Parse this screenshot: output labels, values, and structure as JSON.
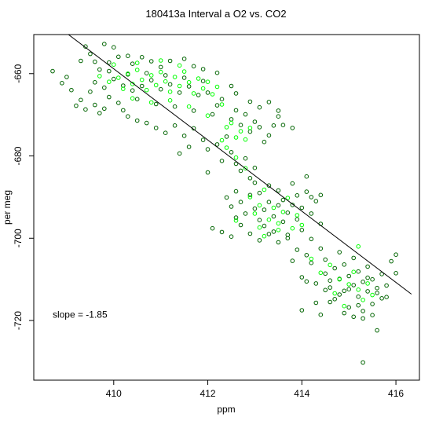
{
  "chart_data": {
    "type": "scatter",
    "title": "180413a   Interval a O2 vs. CO2",
    "xlabel": "ppm",
    "ylabel": "per meg",
    "xlim": [
      408.3,
      416.5
    ],
    "ylim": [
      -734.5,
      -650.5
    ],
    "xticks": [
      "410",
      "412",
      "414",
      "416"
    ],
    "xtick_values": [
      410,
      412,
      414,
      416
    ],
    "yticks": [
      "-660",
      "-680",
      "-700",
      "-720"
    ],
    "ytick_values": [
      -660,
      -680,
      -700,
      -720
    ],
    "grid": false,
    "annotation": "slope =  -1.85",
    "annotation_pos": {
      "x": 408.7,
      "y": -718.6
    },
    "regression_line": {
      "slope": -1.85,
      "x1": 408.88,
      "y1": -649.14,
      "x2": 416.33,
      "y2": -713.59
    },
    "series": [
      {
        "color": "#006400",
        "points": [
          [
            408.7,
            -659.4
          ],
          [
            408.9,
            -662.3
          ],
          [
            409.0,
            -660.8
          ],
          [
            409.1,
            -664.0
          ],
          [
            409.3,
            -656.9
          ],
          [
            409.4,
            -653.4
          ],
          [
            409.5,
            -655.2
          ],
          [
            409.6,
            -657.1
          ],
          [
            409.7,
            -659.0
          ],
          [
            409.8,
            -652.8
          ],
          [
            409.9,
            -657.3
          ],
          [
            410.0,
            -653.6
          ],
          [
            410.1,
            -655.9
          ],
          [
            410.3,
            -655.7
          ],
          [
            410.4,
            -657.6
          ],
          [
            410.6,
            -656.0
          ],
          [
            410.8,
            -657.0
          ],
          [
            411.0,
            -658.4
          ],
          [
            411.2,
            -656.9
          ],
          [
            411.5,
            -656.4
          ],
          [
            411.7,
            -658.2
          ],
          [
            411.9,
            -658.9
          ],
          [
            412.2,
            -659.8
          ],
          [
            409.2,
            -667.8
          ],
          [
            409.3,
            -666.4
          ],
          [
            409.4,
            -668.7
          ],
          [
            409.5,
            -664.4
          ],
          [
            409.6,
            -667.6
          ],
          [
            409.7,
            -669.6
          ],
          [
            409.8,
            -668.5
          ],
          [
            409.9,
            -665.7
          ],
          [
            410.1,
            -667.1
          ],
          [
            410.2,
            -668.9
          ],
          [
            410.3,
            -670.4
          ],
          [
            410.5,
            -671.4
          ],
          [
            410.7,
            -672.0
          ],
          [
            410.9,
            -673.2
          ],
          [
            411.1,
            -674.4
          ],
          [
            411.3,
            -672.6
          ],
          [
            411.5,
            -675.1
          ],
          [
            411.7,
            -673.3
          ],
          [
            411.9,
            -676.1
          ],
          [
            412.0,
            -678.4
          ],
          [
            412.2,
            -677.2
          ],
          [
            412.4,
            -675.3
          ],
          [
            412.5,
            -671.1
          ],
          [
            412.6,
            -668.9
          ],
          [
            412.7,
            -672.5
          ],
          [
            412.8,
            -669.9
          ],
          [
            412.9,
            -674.1
          ],
          [
            413.0,
            -671.7
          ],
          [
            413.1,
            -673.0
          ],
          [
            413.2,
            -676.6
          ],
          [
            413.3,
            -675.0
          ],
          [
            413.4,
            -672.6
          ],
          [
            413.5,
            -670.4
          ],
          [
            412.3,
            -666.2
          ],
          [
            412.5,
            -663.0
          ],
          [
            412.6,
            -664.8
          ],
          [
            412.9,
            -666.8
          ],
          [
            413.1,
            -668.2
          ],
          [
            413.3,
            -666.9
          ],
          [
            413.5,
            -669.0
          ],
          [
            413.6,
            -672.5
          ],
          [
            413.8,
            -673.2
          ],
          [
            409.6,
            -662.1
          ],
          [
            409.8,
            -663.4
          ],
          [
            410.0,
            -661.3
          ],
          [
            410.2,
            -662.9
          ],
          [
            410.4,
            -664.1
          ],
          [
            410.6,
            -663.0
          ],
          [
            410.8,
            -661.6
          ],
          [
            411.0,
            -663.8
          ],
          [
            411.2,
            -662.6
          ],
          [
            411.4,
            -664.6
          ],
          [
            411.6,
            -663.1
          ],
          [
            411.8,
            -665.2
          ],
          [
            412.0,
            -664.6
          ],
          [
            412.2,
            -667.7
          ],
          [
            409.9,
            -659.4
          ],
          [
            410.3,
            -660.2
          ],
          [
            410.7,
            -659.9
          ],
          [
            411.1,
            -660.4
          ],
          [
            411.5,
            -661.0
          ],
          [
            411.9,
            -661.8
          ],
          [
            410.5,
            -666.2
          ],
          [
            410.9,
            -667.4
          ],
          [
            411.3,
            -668.0
          ],
          [
            411.7,
            -669.0
          ],
          [
            412.1,
            -669.9
          ],
          [
            411.4,
            -679.4
          ],
          [
            411.6,
            -677.8
          ],
          [
            412.0,
            -684.0
          ],
          [
            412.3,
            -681.2
          ],
          [
            412.5,
            -679.1
          ],
          [
            412.6,
            -681.9
          ],
          [
            412.7,
            -683.6
          ],
          [
            412.8,
            -680.6
          ],
          [
            412.9,
            -685.4
          ],
          [
            413.0,
            -682.9
          ],
          [
            412.4,
            -690.1
          ],
          [
            412.5,
            -692.3
          ],
          [
            412.6,
            -688.6
          ],
          [
            412.6,
            -695.0
          ],
          [
            412.7,
            -691.2
          ],
          [
            412.8,
            -694.0
          ],
          [
            412.9,
            -689.5
          ],
          [
            413.0,
            -692.8
          ],
          [
            413.0,
            -686.5
          ],
          [
            413.1,
            -695.6
          ],
          [
            413.1,
            -689.0
          ],
          [
            413.2,
            -693.1
          ],
          [
            413.2,
            -697.0
          ],
          [
            413.3,
            -691.2
          ],
          [
            413.3,
            -687.2
          ],
          [
            413.4,
            -694.7
          ],
          [
            413.4,
            -698.4
          ],
          [
            413.5,
            -692.0
          ],
          [
            413.5,
            -688.4
          ],
          [
            413.6,
            -696.0
          ],
          [
            413.6,
            -690.7
          ],
          [
            413.7,
            -693.8
          ],
          [
            413.7,
            -699.2
          ],
          [
            413.8,
            -686.7
          ],
          [
            413.8,
            -691.9
          ],
          [
            413.9,
            -695.4
          ],
          [
            413.9,
            -689.6
          ],
          [
            414.0,
            -692.6
          ],
          [
            414.0,
            -698.0
          ],
          [
            414.1,
            -685.0
          ],
          [
            414.1,
            -688.7
          ],
          [
            414.2,
            -694.0
          ],
          [
            414.2,
            -700.2
          ],
          [
            414.3,
            -691.0
          ],
          [
            414.4,
            -696.5
          ],
          [
            414.4,
            -702.5
          ],
          [
            414.2,
            -690.0
          ],
          [
            414.4,
            -689.5
          ],
          [
            412.1,
            -697.6
          ],
          [
            412.3,
            -698.5
          ],
          [
            412.5,
            -699.6
          ],
          [
            412.7,
            -696.8
          ],
          [
            412.9,
            -698.9
          ],
          [
            413.1,
            -700.5
          ],
          [
            413.3,
            -699.0
          ],
          [
            413.5,
            -701.0
          ],
          [
            413.7,
            -700.0
          ],
          [
            413.9,
            -702.8
          ],
          [
            414.1,
            -704.1
          ],
          [
            413.8,
            -705.5
          ],
          [
            414.0,
            -709.5
          ],
          [
            414.2,
            -706.0
          ],
          [
            414.3,
            -711.0
          ],
          [
            414.5,
            -705.2
          ],
          [
            414.5,
            -708.6
          ],
          [
            414.6,
            -712.0
          ],
          [
            414.7,
            -707.3
          ],
          [
            414.7,
            -714.8
          ],
          [
            414.8,
            -709.9
          ],
          [
            414.8,
            -703.4
          ],
          [
            414.9,
            -712.8
          ],
          [
            414.9,
            -706.4
          ],
          [
            415.0,
            -709.2
          ],
          [
            415.0,
            -716.8
          ],
          [
            415.1,
            -711.4
          ],
          [
            415.1,
            -704.8
          ],
          [
            415.2,
            -708.1
          ],
          [
            415.2,
            -714.2
          ],
          [
            415.3,
            -710.6
          ],
          [
            415.3,
            -719.5
          ],
          [
            415.4,
            -712.9
          ],
          [
            415.4,
            -706.9
          ],
          [
            415.5,
            -710.0
          ],
          [
            415.5,
            -716.0
          ],
          [
            415.6,
            -713.3
          ],
          [
            415.6,
            -722.4
          ],
          [
            415.7,
            -708.7
          ],
          [
            415.7,
            -714.6
          ],
          [
            415.8,
            -711.5
          ],
          [
            415.9,
            -705.6
          ],
          [
            416.0,
            -708.5
          ],
          [
            416.0,
            -704.0
          ],
          [
            414.0,
            -717.5
          ],
          [
            414.1,
            -710.5
          ],
          [
            414.3,
            -715.7
          ],
          [
            414.4,
            -718.6
          ],
          [
            414.6,
            -715.5
          ],
          [
            414.9,
            -718.2
          ],
          [
            415.1,
            -719.1
          ],
          [
            415.3,
            -717.7
          ],
          [
            415.5,
            -718.7
          ],
          [
            415.3,
            -730.2
          ],
          [
            414.6,
            -710.3
          ],
          [
            414.8,
            -713.7
          ],
          [
            415.0,
            -712.4
          ],
          [
            415.2,
            -716.3
          ],
          [
            415.4,
            -709.6
          ],
          [
            415.6,
            -712.1
          ],
          [
            415.8,
            -714.3
          ],
          [
            414.5,
            -712.6
          ]
        ]
      },
      {
        "color": "#00ff00",
        "points": [
          [
            409.7,
            -660.6
          ],
          [
            409.9,
            -662.0
          ],
          [
            410.1,
            -661.0
          ],
          [
            410.2,
            -663.7
          ],
          [
            410.3,
            -660.0
          ],
          [
            410.4,
            -662.5
          ],
          [
            410.5,
            -659.1
          ],
          [
            410.6,
            -661.5
          ],
          [
            410.7,
            -664.0
          ],
          [
            410.8,
            -660.4
          ],
          [
            410.9,
            -662.8
          ],
          [
            411.0,
            -659.6
          ],
          [
            411.1,
            -661.9
          ],
          [
            411.2,
            -664.4
          ],
          [
            411.3,
            -660.8
          ],
          [
            411.4,
            -663.0
          ],
          [
            411.5,
            -659.5
          ],
          [
            411.6,
            -662.1
          ],
          [
            411.7,
            -664.8
          ],
          [
            411.8,
            -661.2
          ],
          [
            411.9,
            -663.6
          ],
          [
            412.0,
            -662.0
          ],
          [
            412.1,
            -665.0
          ],
          [
            412.2,
            -663.2
          ],
          [
            412.3,
            -667.5
          ],
          [
            410.0,
            -657.8
          ],
          [
            410.5,
            -657.4
          ],
          [
            411.0,
            -656.8
          ],
          [
            411.4,
            -658.0
          ],
          [
            410.4,
            -666.0
          ],
          [
            410.8,
            -667.0
          ],
          [
            411.2,
            -666.5
          ],
          [
            411.6,
            -668.0
          ],
          [
            412.0,
            -670.2
          ],
          [
            412.4,
            -673.0
          ],
          [
            412.5,
            -672.0
          ],
          [
            412.6,
            -675.5
          ],
          [
            412.7,
            -674.0
          ],
          [
            412.8,
            -676.0
          ],
          [
            412.9,
            -673.2
          ],
          [
            412.3,
            -676.2
          ],
          [
            412.4,
            -678.0
          ],
          [
            412.6,
            -680.4
          ],
          [
            412.8,
            -683.0
          ],
          [
            412.9,
            -690.0
          ],
          [
            413.0,
            -694.0
          ],
          [
            413.1,
            -692.0
          ],
          [
            413.2,
            -688.2
          ],
          [
            413.3,
            -695.5
          ],
          [
            413.4,
            -692.6
          ],
          [
            413.5,
            -696.4
          ],
          [
            413.6,
            -693.6
          ],
          [
            413.7,
            -690.2
          ],
          [
            413.8,
            -697.6
          ],
          [
            413.9,
            -694.4
          ],
          [
            414.0,
            -696.8
          ],
          [
            413.2,
            -699.5
          ],
          [
            413.5,
            -698.0
          ],
          [
            413.1,
            -697.4
          ],
          [
            412.6,
            -695.7
          ],
          [
            414.2,
            -705.0
          ],
          [
            414.4,
            -708.4
          ],
          [
            414.6,
            -706.5
          ],
          [
            414.8,
            -710.0
          ],
          [
            415.0,
            -711.2
          ],
          [
            415.1,
            -708.2
          ],
          [
            415.2,
            -712.5
          ],
          [
            415.3,
            -715.0
          ],
          [
            415.4,
            -711.0
          ],
          [
            415.5,
            -713.8
          ],
          [
            415.2,
            -702.0
          ],
          [
            414.9,
            -716.5
          ],
          [
            414.7,
            -713.4
          ]
        ]
      }
    ]
  }
}
